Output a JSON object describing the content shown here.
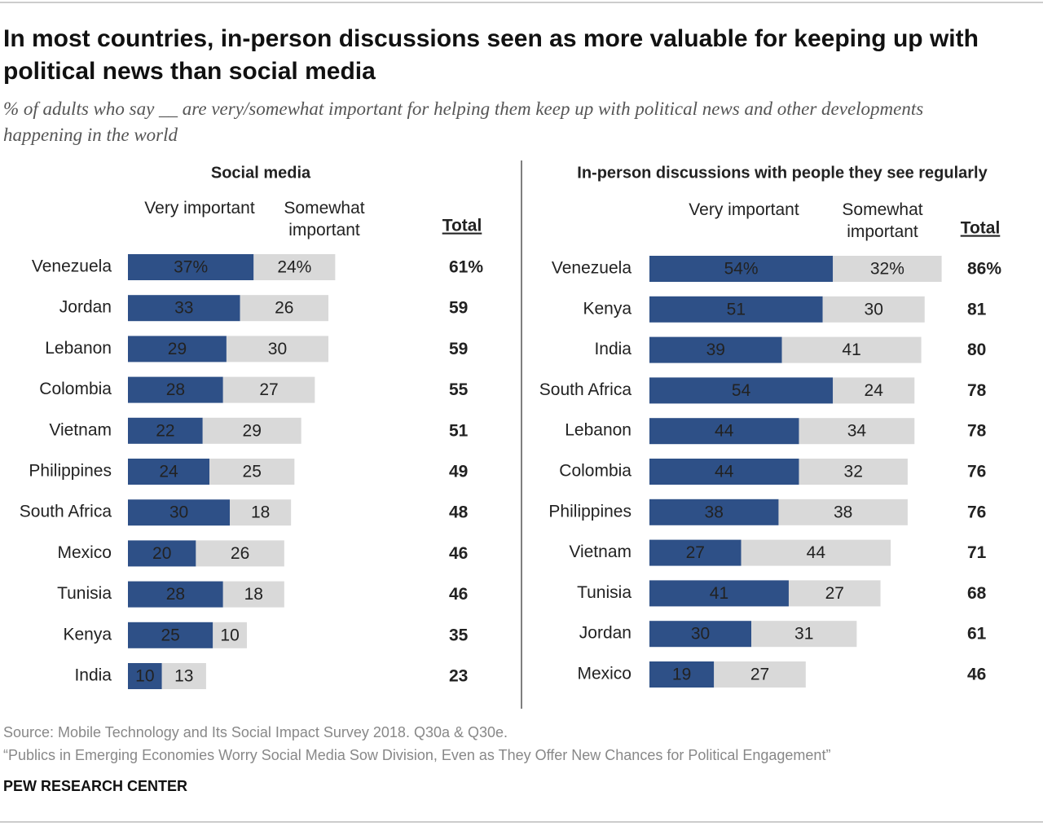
{
  "title": "In most countries, in-person discussions seen as more valuable for keeping up with political news than social media",
  "subtitle": "% of adults who say __ are very/somewhat important for helping them keep up with political news and other developments happening in the world",
  "source": "Source: Mobile Technology and Its Social Impact Survey 2018. Q30a & Q30e.",
  "note": "“Publics in Emerging Economies Worry Social Media Sow Division, Even as They Offer New Chances for Political Engagement”",
  "footer": "PEW RESEARCH CENTER",
  "chart_data": [
    {
      "type": "stacked-bar",
      "title": "Social media",
      "categories": [
        "Venezuela",
        "Jordan",
        "Lebanon",
        "Colombia",
        "Vietnam",
        "Philippines",
        "South Africa",
        "Mexico",
        "Tunisia",
        "Kenya",
        "India"
      ],
      "series": [
        {
          "name": "Very important",
          "color": "#2e5087",
          "values": [
            37,
            33,
            29,
            28,
            22,
            24,
            30,
            20,
            28,
            25,
            10
          ],
          "value_labels": [
            "37%",
            "33",
            "29",
            "28",
            "22",
            "24",
            "30",
            "20",
            "28",
            "25",
            "10"
          ]
        },
        {
          "name": "Somewhat important",
          "color": "#d9d9d9",
          "values": [
            24,
            26,
            30,
            27,
            29,
            25,
            18,
            26,
            18,
            10,
            13
          ],
          "value_labels": [
            "24%",
            "26",
            "30",
            "27",
            "29",
            "25",
            "18",
            "26",
            "18",
            "10",
            "13"
          ]
        }
      ],
      "totals": {
        "name": "Total",
        "values": [
          61,
          59,
          59,
          55,
          51,
          49,
          48,
          46,
          46,
          35,
          23
        ],
        "value_labels": [
          "61%",
          "59",
          "59",
          "55",
          "51",
          "49",
          "48",
          "46",
          "46",
          "35",
          "23"
        ]
      }
    },
    {
      "type": "stacked-bar",
      "title": "In-person discussions with people they see regularly",
      "categories": [
        "Venezuela",
        "Kenya",
        "India",
        "South Africa",
        "Lebanon",
        "Colombia",
        "Philippines",
        "Vietnam",
        "Tunisia",
        "Jordan",
        "Mexico"
      ],
      "series": [
        {
          "name": "Very important",
          "color": "#2e5087",
          "values": [
            54,
            51,
            39,
            54,
            44,
            44,
            38,
            27,
            41,
            30,
            19
          ],
          "value_labels": [
            "54%",
            "51",
            "39",
            "54",
            "44",
            "44",
            "38",
            "27",
            "41",
            "30",
            "19"
          ]
        },
        {
          "name": "Somewhat important",
          "color": "#d9d9d9",
          "values": [
            32,
            30,
            41,
            24,
            34,
            32,
            38,
            44,
            27,
            31,
            27
          ],
          "value_labels": [
            "32%",
            "30",
            "41",
            "24",
            "34",
            "32",
            "38",
            "44",
            "27",
            "31",
            "27"
          ]
        }
      ],
      "totals": {
        "name": "Total",
        "values": [
          86,
          81,
          80,
          78,
          78,
          76,
          76,
          71,
          68,
          61,
          46
        ],
        "value_labels": [
          "86%",
          "81",
          "80",
          "78",
          "78",
          "76",
          "76",
          "71",
          "68",
          "61",
          "46"
        ]
      }
    }
  ]
}
